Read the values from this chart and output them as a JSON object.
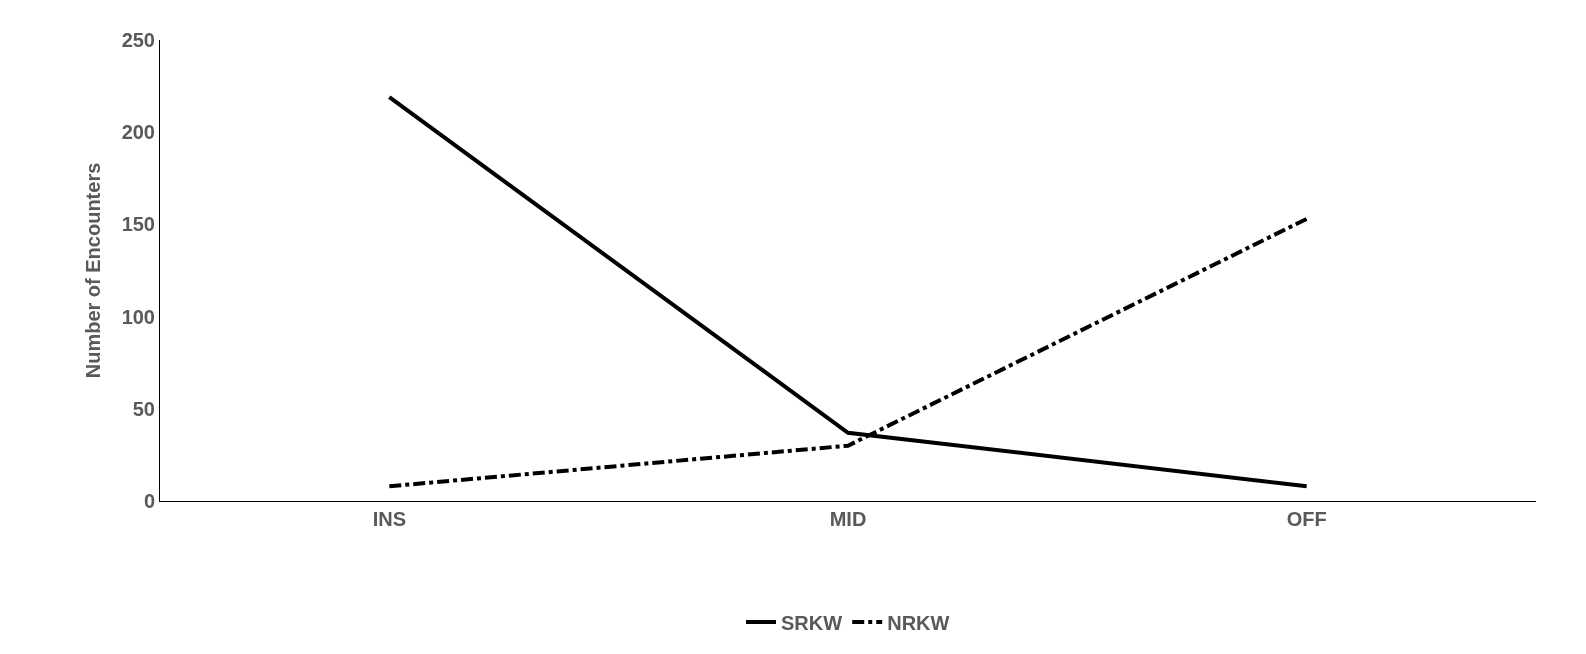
{
  "chart_data": {
    "type": "line",
    "ylabel": "Number of Encounters",
    "categories": [
      "INS",
      "MID",
      "OFF"
    ],
    "series": [
      {
        "name": "SRKW",
        "color": "#000000",
        "values": [
          219,
          37,
          8
        ],
        "line_style": "solid"
      },
      {
        "name": "NRKW",
        "color": "#000000",
        "values": [
          8,
          30,
          153
        ],
        "line_style": "dashdot"
      }
    ],
    "ylim": [
      0,
      250
    ],
    "yticks": [
      0,
      50,
      100,
      150,
      200,
      250
    ],
    "legend": "bottom",
    "marker": "none"
  }
}
